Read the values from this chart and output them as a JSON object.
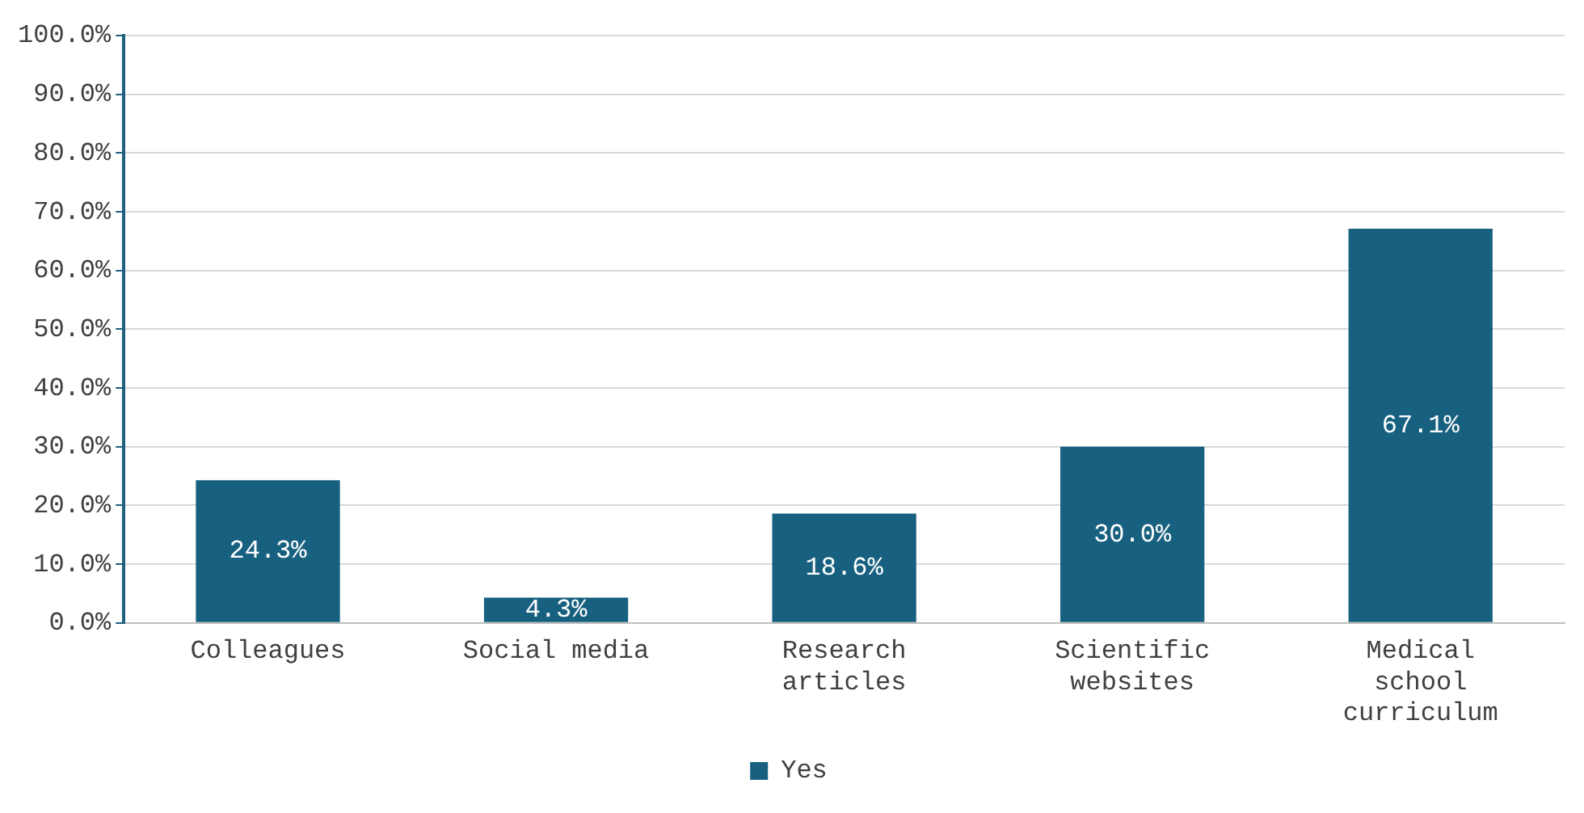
{
  "chart_data": {
    "type": "bar",
    "categories": [
      "Colleagues",
      "Social media",
      "Research articles",
      "Scientific websites",
      "Medical school curriculum"
    ],
    "series": [
      {
        "name": "Yes",
        "color": "#17607f",
        "values": [
          24.3,
          4.3,
          18.6,
          30.0,
          67.1
        ]
      }
    ],
    "ylim": [
      0,
      100
    ],
    "yticks": [
      {
        "value": 0,
        "label": "0.0%"
      },
      {
        "value": 10,
        "label": "10.0%"
      },
      {
        "value": 20,
        "label": "20.0%"
      },
      {
        "value": 30,
        "label": "30.0%"
      },
      {
        "value": 40,
        "label": "40.0%"
      },
      {
        "value": 50,
        "label": "50.0%"
      },
      {
        "value": 60,
        "label": "60.0%"
      },
      {
        "value": 70,
        "label": "70.0%"
      },
      {
        "value": 80,
        "label": "80.0%"
      },
      {
        "value": 90,
        "label": "90.0%"
      },
      {
        "value": 100,
        "label": "100.0%"
      }
    ],
    "value_labels": [
      "24.3%",
      "4.3%",
      "18.6%",
      "30.0%",
      "67.1%"
    ],
    "grid": "y",
    "legend": "bottom"
  }
}
